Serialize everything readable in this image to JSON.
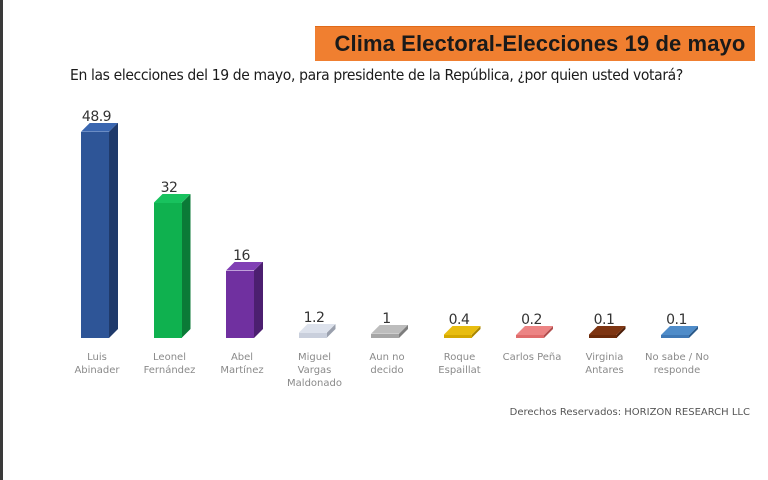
{
  "header": {
    "title": "Clima Electoral-Elecciones 19 de mayo",
    "subtitle": "En las elecciones del 19 de mayo, para presidente de la República, ¿por quien usted votará?"
  },
  "footer": {
    "copyright": "Derechos Reservados: HORIZON RESEARCH LLC"
  },
  "colors": {
    "banner": "#f07f30"
  },
  "chart_data": {
    "type": "bar",
    "title": "Clima Electoral-Elecciones 19 de mayo",
    "subtitle": "En las elecciones del 19 de mayo, para presidente de la República, ¿por quien usted votará?",
    "xlabel": "",
    "ylabel": "",
    "grid": false,
    "legend": "none",
    "style": "3d-bars",
    "categories": [
      "Luis\nAbinader",
      "Leonel\nFernández",
      "Abel\nMartínez",
      "Miguel\nVargas\nMaldonado",
      "Aun no\ndecido",
      "Roque\nEspaillat",
      "Carlos Peña",
      "Virginia\nAntares",
      "No sabe / No\nresponde"
    ],
    "values": [
      48.9,
      32,
      16,
      1.2,
      1,
      0.4,
      0.2,
      0.1,
      0.1
    ],
    "value_labels": [
      "48.9",
      "32",
      "16",
      "1.2",
      "1",
      "0.4",
      "0.2",
      "0.1",
      "0.1"
    ],
    "bar_colors": [
      "#2e5597",
      "#0fb14f",
      "#7030a0",
      "#c9cfdc",
      "#a6a6a6",
      "#d4a800",
      "#e06c6c",
      "#6b2a0a",
      "#3f78b5"
    ],
    "side_colors": [
      "#1f3a6b",
      "#0b7a37",
      "#4c1f70",
      "#9aa0ad",
      "#7d7d7d",
      "#a88500",
      "#b04e4e",
      "#4a1c06",
      "#2b5a8a"
    ],
    "top_colors": [
      "#3a66b0",
      "#18c25e",
      "#8140b5",
      "#dde2ec",
      "#bdbdbd",
      "#e8bd10",
      "#ec8484",
      "#7e3512",
      "#4f8cc9"
    ],
    "ylim": [
      0,
      50
    ],
    "source": "Derechos Reservados: HORIZON RESEARCH LLC"
  }
}
